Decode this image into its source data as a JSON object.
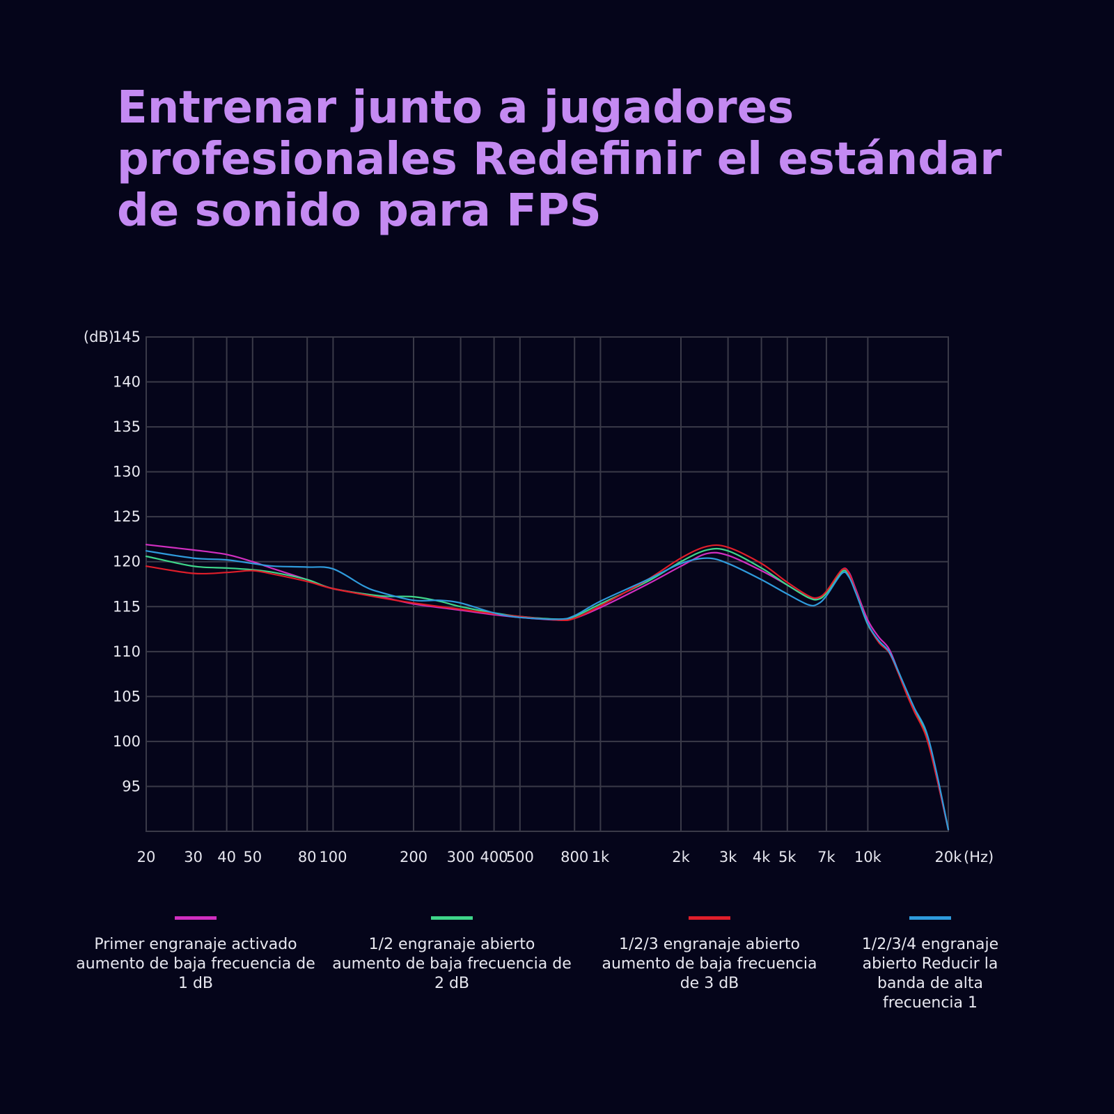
{
  "title": {
    "line1": "Entrenar junto a jugadores",
    "line2": "profesionales Redefinir el estándar",
    "line3": "de sonido para FPS"
  },
  "chart_data": {
    "type": "line",
    "y_unit_label": "(dB)",
    "x_unit_label": "(Hz)",
    "x_scale": "log",
    "xlim": [
      20,
      20000
    ],
    "ylim": [
      90,
      145
    ],
    "grid": true,
    "x_ticks": [
      {
        "value": 20,
        "label": "20"
      },
      {
        "value": 30,
        "label": "30"
      },
      {
        "value": 40,
        "label": "40"
      },
      {
        "value": 50,
        "label": "50"
      },
      {
        "value": 80,
        "label": "80"
      },
      {
        "value": 100,
        "label": "100"
      },
      {
        "value": 200,
        "label": "200"
      },
      {
        "value": 300,
        "label": "300"
      },
      {
        "value": 400,
        "label": "400"
      },
      {
        "value": 500,
        "label": "500"
      },
      {
        "value": 800,
        "label": "800"
      },
      {
        "value": 1000,
        "label": "1k"
      },
      {
        "value": 2000,
        "label": "2k"
      },
      {
        "value": 3000,
        "label": "3k"
      },
      {
        "value": 4000,
        "label": "4k"
      },
      {
        "value": 5000,
        "label": "5k"
      },
      {
        "value": 7000,
        "label": "7k"
      },
      {
        "value": 10000,
        "label": "10k"
      },
      {
        "value": 20000,
        "label": "20k"
      }
    ],
    "y_ticks": [
      {
        "value": 145,
        "label": "145"
      },
      {
        "value": 140,
        "label": "140"
      },
      {
        "value": 135,
        "label": "135"
      },
      {
        "value": 130,
        "label": "130"
      },
      {
        "value": 125,
        "label": "125"
      },
      {
        "value": 120,
        "label": "120"
      },
      {
        "value": 115,
        "label": "115"
      },
      {
        "value": 110,
        "label": "110"
      },
      {
        "value": 105,
        "label": "105"
      },
      {
        "value": 100,
        "label": "100"
      },
      {
        "value": 95,
        "label": "95"
      }
    ],
    "series": [
      {
        "name": "Primer engranaje activado aumento de baja frecuencia de 1 dB",
        "color": "#d12fc0",
        "points": [
          [
            20,
            121.9
          ],
          [
            30,
            121.3
          ],
          [
            40,
            120.8
          ],
          [
            50,
            120.0
          ],
          [
            60,
            119.2
          ],
          [
            80,
            118.0
          ],
          [
            100,
            117.0
          ],
          [
            150,
            116.1
          ],
          [
            200,
            115.3
          ],
          [
            300,
            114.6
          ],
          [
            400,
            114.1
          ],
          [
            500,
            113.8
          ],
          [
            700,
            113.5
          ],
          [
            800,
            113.7
          ],
          [
            1000,
            114.9
          ],
          [
            1500,
            117.5
          ],
          [
            2000,
            119.5
          ],
          [
            2500,
            120.9
          ],
          [
            3000,
            120.7
          ],
          [
            4000,
            119.0
          ],
          [
            5000,
            117.4
          ],
          [
            6000,
            116.0
          ],
          [
            6500,
            116.0
          ],
          [
            7000,
            116.6
          ],
          [
            8000,
            119.1
          ],
          [
            8500,
            118.8
          ],
          [
            9000,
            117.0
          ],
          [
            10000,
            113.5
          ],
          [
            11000,
            111.6
          ],
          [
            12000,
            110.3
          ],
          [
            13000,
            107.8
          ],
          [
            14000,
            105.3
          ],
          [
            15000,
            103.2
          ],
          [
            16500,
            100.8
          ],
          [
            18000,
            96.3
          ],
          [
            20000,
            90.2
          ]
        ]
      },
      {
        "name": "1/2 engranaje abierto aumento de baja frecuencia de 2 dB",
        "color": "#3fd68a",
        "points": [
          [
            20,
            120.6
          ],
          [
            30,
            119.5
          ],
          [
            40,
            119.3
          ],
          [
            50,
            119.1
          ],
          [
            60,
            118.8
          ],
          [
            80,
            118.0
          ],
          [
            100,
            117.0
          ],
          [
            150,
            116.2
          ],
          [
            200,
            116.1
          ],
          [
            250,
            115.6
          ],
          [
            300,
            115.0
          ],
          [
            400,
            114.3
          ],
          [
            500,
            113.9
          ],
          [
            700,
            113.6
          ],
          [
            800,
            113.9
          ],
          [
            1000,
            115.3
          ],
          [
            1500,
            117.8
          ],
          [
            2000,
            120.0
          ],
          [
            2500,
            121.3
          ],
          [
            3000,
            121.2
          ],
          [
            4000,
            119.3
          ],
          [
            5000,
            117.4
          ],
          [
            6000,
            116.0
          ],
          [
            6500,
            115.8
          ],
          [
            7000,
            116.5
          ],
          [
            8000,
            118.9
          ],
          [
            8500,
            118.5
          ],
          [
            9000,
            116.7
          ],
          [
            10000,
            113.0
          ],
          [
            11000,
            111.2
          ],
          [
            12000,
            110.0
          ],
          [
            13000,
            107.8
          ],
          [
            14000,
            105.5
          ],
          [
            15000,
            103.5
          ],
          [
            16500,
            101.0
          ],
          [
            18000,
            96.6
          ],
          [
            20000,
            90.2
          ]
        ]
      },
      {
        "name": "1/2/3 engranaje abierto aumento de baja frecuencia de 3 dB",
        "color": "#e01e2a",
        "points": [
          [
            20,
            119.5
          ],
          [
            30,
            118.7
          ],
          [
            40,
            118.8
          ],
          [
            50,
            119.0
          ],
          [
            60,
            118.6
          ],
          [
            80,
            117.8
          ],
          [
            100,
            117.0
          ],
          [
            150,
            116.0
          ],
          [
            200,
            115.4
          ],
          [
            300,
            114.7
          ],
          [
            400,
            114.2
          ],
          [
            500,
            113.9
          ],
          [
            700,
            113.5
          ],
          [
            800,
            113.7
          ],
          [
            1000,
            115.1
          ],
          [
            1500,
            118.0
          ],
          [
            2000,
            120.4
          ],
          [
            2500,
            121.7
          ],
          [
            3000,
            121.6
          ],
          [
            4000,
            119.8
          ],
          [
            5000,
            117.7
          ],
          [
            6000,
            116.2
          ],
          [
            6500,
            116.0
          ],
          [
            7000,
            116.7
          ],
          [
            8000,
            119.1
          ],
          [
            8500,
            118.7
          ],
          [
            9000,
            116.8
          ],
          [
            10000,
            113.1
          ],
          [
            11000,
            111.0
          ],
          [
            12000,
            109.9
          ],
          [
            13000,
            107.6
          ],
          [
            14000,
            105.2
          ],
          [
            15000,
            103.2
          ],
          [
            16500,
            100.6
          ],
          [
            18000,
            96.3
          ],
          [
            20000,
            90.2
          ]
        ]
      },
      {
        "name": "1/2/3/4 engranaje abierto Reducir la banda de alta frecuencia 1",
        "color": "#2f9bdc",
        "points": [
          [
            20,
            121.2
          ],
          [
            30,
            120.4
          ],
          [
            40,
            120.2
          ],
          [
            50,
            119.8
          ],
          [
            60,
            119.5
          ],
          [
            80,
            119.4
          ],
          [
            100,
            119.2
          ],
          [
            130,
            117.3
          ],
          [
            150,
            116.6
          ],
          [
            200,
            115.7
          ],
          [
            250,
            115.7
          ],
          [
            300,
            115.4
          ],
          [
            400,
            114.3
          ],
          [
            500,
            113.8
          ],
          [
            700,
            113.6
          ],
          [
            800,
            114.0
          ],
          [
            1000,
            115.6
          ],
          [
            1500,
            118.0
          ],
          [
            2000,
            119.8
          ],
          [
            2500,
            120.4
          ],
          [
            3000,
            119.8
          ],
          [
            4000,
            118.0
          ],
          [
            5000,
            116.4
          ],
          [
            6000,
            115.2
          ],
          [
            6500,
            115.3
          ],
          [
            7000,
            116.2
          ],
          [
            8000,
            118.7
          ],
          [
            8500,
            118.3
          ],
          [
            9000,
            116.6
          ],
          [
            10000,
            113.1
          ],
          [
            11000,
            111.2
          ],
          [
            12000,
            110.0
          ],
          [
            13000,
            107.8
          ],
          [
            14000,
            105.6
          ],
          [
            15000,
            103.6
          ],
          [
            16500,
            101.2
          ],
          [
            18000,
            96.8
          ],
          [
            20000,
            90.2
          ]
        ]
      }
    ]
  },
  "legend": [
    {
      "color": "#d12fc0",
      "line1": "Primer engranaje activado",
      "line2": "aumento de baja frecuencia de",
      "line3": "1 dB",
      "line4": ""
    },
    {
      "color": "#3fd68a",
      "line1": "1/2 engranaje abierto",
      "line2": "aumento de baja frecuencia de",
      "line3": "2 dB",
      "line4": ""
    },
    {
      "color": "#e01e2a",
      "line1": "1/2/3 engranaje abierto",
      "line2": "aumento de baja frecuencia",
      "line3": "de 3 dB",
      "line4": ""
    },
    {
      "color": "#2f9bdc",
      "line1": "1/2/3/4 engranaje",
      "line2": "abierto Reducir la",
      "line3": "banda de alta",
      "line4": "frecuencia 1"
    }
  ],
  "colors": {
    "background": "#05051a",
    "title": "#c48af2",
    "grid": "#3a3a48",
    "axis_text": "#e8e8f0"
  }
}
